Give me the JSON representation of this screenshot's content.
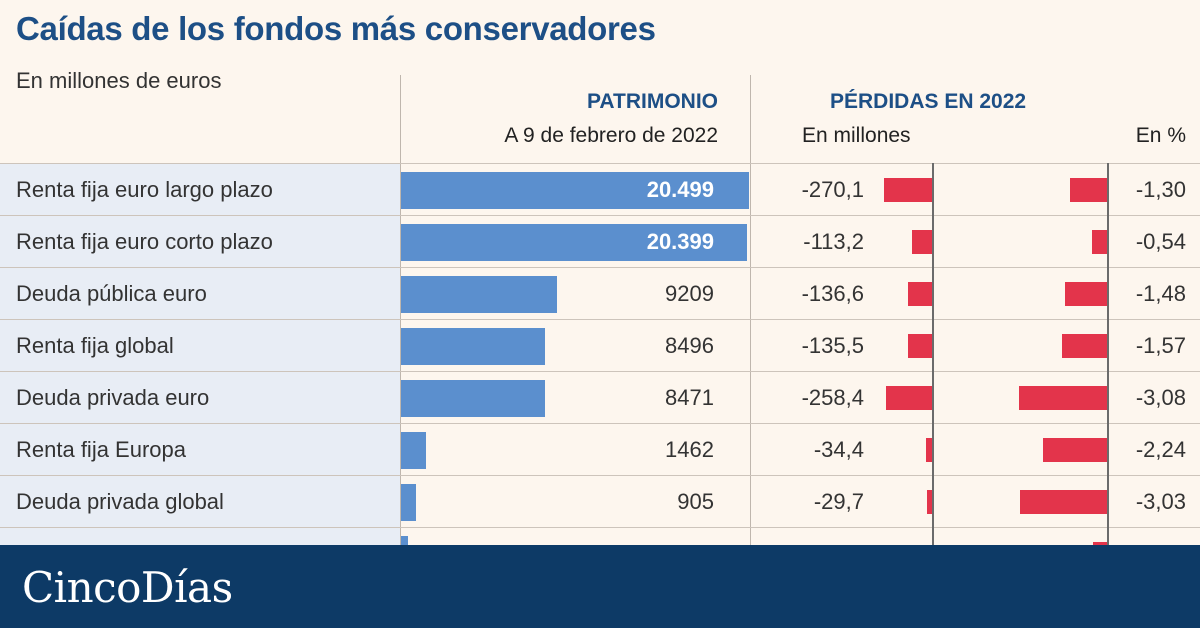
{
  "title": "Caídas de los fondos más conservadores",
  "subtitle": "En millones de euros",
  "headers": {
    "patrimonio": "PATRIMONIO",
    "patrimonio_sub": "A 9 de febrero de 2022",
    "perdidas": "PÉRDIDAS EN 2022",
    "perdidas_millones": "En millones",
    "perdidas_pct": "En %"
  },
  "colors": {
    "title": "#1d4f86",
    "patrimonio_bar": "#5b8fce",
    "loss_bar": "#e3344b",
    "footer": "#0d3a66"
  },
  "chart_data": {
    "type": "table",
    "columns": [
      "",
      "PATRIMONIO",
      "En millones",
      "En %"
    ],
    "rows": [
      {
        "label": "Renta fija euro largo plazo",
        "patrimonio": 20499,
        "patrimonio_text": "20.499",
        "loss_m": -270.1,
        "loss_m_text": "-270,1",
        "loss_p": -1.3,
        "loss_p_text": "-1,30"
      },
      {
        "label": "Renta fija euro corto plazo",
        "patrimonio": 20399,
        "patrimonio_text": "20.399",
        "loss_m": -113.2,
        "loss_m_text": "-113,2",
        "loss_p": -0.54,
        "loss_p_text": "-0,54"
      },
      {
        "label": "Deuda pública euro",
        "patrimonio": 9209,
        "patrimonio_text": "9209",
        "loss_m": -136.6,
        "loss_m_text": "-136,6",
        "loss_p": -1.48,
        "loss_p_text": "-1,48"
      },
      {
        "label": "Renta fija global",
        "patrimonio": 8496,
        "patrimonio_text": "8496",
        "loss_m": -135.5,
        "loss_m_text": "-135,5",
        "loss_p": -1.57,
        "loss_p_text": "-1,57"
      },
      {
        "label": "Deuda privada euro",
        "patrimonio": 8471,
        "patrimonio_text": "8471",
        "loss_m": -258.4,
        "loss_m_text": "-258,4",
        "loss_p": -3.08,
        "loss_p_text": "-3,08"
      },
      {
        "label": "Renta fija Europa",
        "patrimonio": 1462,
        "patrimonio_text": "1462",
        "loss_m": -34.4,
        "loss_m_text": "-34,4",
        "loss_p": -2.24,
        "loss_p_text": "-2,24"
      },
      {
        "label": "Deuda privada global",
        "patrimonio": 905,
        "patrimonio_text": "905",
        "loss_m": -29.7,
        "loss_m_text": "-29,7",
        "loss_p": -3.03,
        "loss_p_text": "-3,03"
      }
    ]
  },
  "footer": {
    "logo": "CincoDías"
  }
}
